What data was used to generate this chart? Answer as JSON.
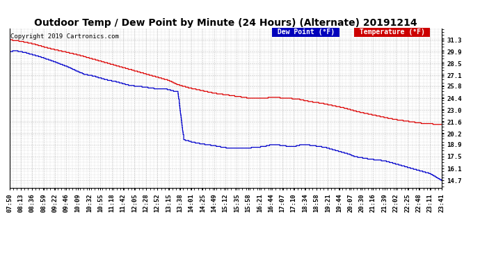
{
  "title": "Outdoor Temp / Dew Point by Minute (24 Hours) (Alternate) 20191214",
  "copyright": "Copyright 2019 Cartronics.com",
  "legend_dew": "Dew Point (°F)",
  "legend_temp": "Temperature (°F)",
  "ylim": [
    13.8,
    32.6
  ],
  "yticks": [
    14.7,
    16.1,
    17.5,
    18.9,
    20.2,
    21.6,
    23.0,
    24.4,
    25.8,
    27.1,
    28.5,
    29.9,
    31.3
  ],
  "bg_color": "#ffffff",
  "plot_bg_color": "#ffffff",
  "grid_color": "#999999",
  "temp_color": "#dd0000",
  "dew_color": "#0000cc",
  "title_fontsize": 10,
  "tick_fontsize": 6.5,
  "x_labels": [
    "07:50",
    "08:13",
    "08:36",
    "08:59",
    "09:22",
    "09:46",
    "10:09",
    "10:32",
    "10:55",
    "11:18",
    "11:42",
    "12:05",
    "12:28",
    "12:52",
    "13:15",
    "13:38",
    "14:01",
    "14:25",
    "14:49",
    "15:12",
    "15:35",
    "15:58",
    "16:21",
    "16:44",
    "17:07",
    "17:10",
    "18:34",
    "18:58",
    "19:21",
    "19:44",
    "20:07",
    "20:30",
    "21:16",
    "21:39",
    "22:02",
    "22:25",
    "22:48",
    "23:11",
    "23:41"
  ],
  "temp_keypoints": [
    [
      0,
      31.3
    ],
    [
      40,
      31.1
    ],
    [
      80,
      30.8
    ],
    [
      130,
      30.3
    ],
    [
      180,
      29.9
    ],
    [
      230,
      29.5
    ],
    [
      280,
      29.0
    ],
    [
      330,
      28.5
    ],
    [
      380,
      28.0
    ],
    [
      430,
      27.5
    ],
    [
      480,
      27.0
    ],
    [
      530,
      26.5
    ],
    [
      560,
      26.0
    ],
    [
      600,
      25.6
    ],
    [
      640,
      25.3
    ],
    [
      680,
      25.0
    ],
    [
      720,
      24.8
    ],
    [
      760,
      24.6
    ],
    [
      800,
      24.4
    ],
    [
      840,
      24.4
    ],
    [
      880,
      24.5
    ],
    [
      920,
      24.4
    ],
    [
      960,
      24.3
    ],
    [
      1000,
      24.0
    ],
    [
      1040,
      23.8
    ],
    [
      1080,
      23.5
    ],
    [
      1120,
      23.2
    ],
    [
      1160,
      22.8
    ],
    [
      1200,
      22.5
    ],
    [
      1240,
      22.2
    ],
    [
      1280,
      21.9
    ],
    [
      1320,
      21.7
    ],
    [
      1380,
      21.4
    ],
    [
      1439,
      21.3
    ]
  ],
  "dew_keypoints": [
    [
      0,
      29.9
    ],
    [
      20,
      30.0
    ],
    [
      50,
      29.8
    ],
    [
      100,
      29.3
    ],
    [
      150,
      28.7
    ],
    [
      200,
      28.0
    ],
    [
      230,
      27.5
    ],
    [
      250,
      27.2
    ],
    [
      270,
      27.1
    ],
    [
      290,
      26.9
    ],
    [
      310,
      26.7
    ],
    [
      330,
      26.5
    ],
    [
      350,
      26.4
    ],
    [
      370,
      26.2
    ],
    [
      400,
      25.9
    ],
    [
      430,
      25.8
    ],
    [
      450,
      25.7
    ],
    [
      470,
      25.6
    ],
    [
      490,
      25.5
    ],
    [
      510,
      25.5
    ],
    [
      520,
      25.5
    ],
    [
      530,
      25.4
    ],
    [
      540,
      25.3
    ],
    [
      550,
      25.2
    ],
    [
      560,
      25.2
    ],
    [
      580,
      19.5
    ],
    [
      610,
      19.2
    ],
    [
      640,
      19.0
    ],
    [
      680,
      18.8
    ],
    [
      710,
      18.6
    ],
    [
      730,
      18.5
    ],
    [
      760,
      18.5
    ],
    [
      790,
      18.5
    ],
    [
      820,
      18.6
    ],
    [
      850,
      18.7
    ],
    [
      870,
      18.9
    ],
    [
      890,
      18.9
    ],
    [
      910,
      18.8
    ],
    [
      930,
      18.7
    ],
    [
      950,
      18.7
    ],
    [
      970,
      18.9
    ],
    [
      990,
      18.9
    ],
    [
      1010,
      18.8
    ],
    [
      1030,
      18.7
    ],
    [
      1050,
      18.6
    ],
    [
      1070,
      18.4
    ],
    [
      1090,
      18.2
    ],
    [
      1110,
      18.0
    ],
    [
      1130,
      17.8
    ],
    [
      1150,
      17.5
    ],
    [
      1200,
      17.2
    ],
    [
      1250,
      17.0
    ],
    [
      1300,
      16.5
    ],
    [
      1350,
      16.0
    ],
    [
      1400,
      15.5
    ],
    [
      1439,
      14.7
    ]
  ]
}
